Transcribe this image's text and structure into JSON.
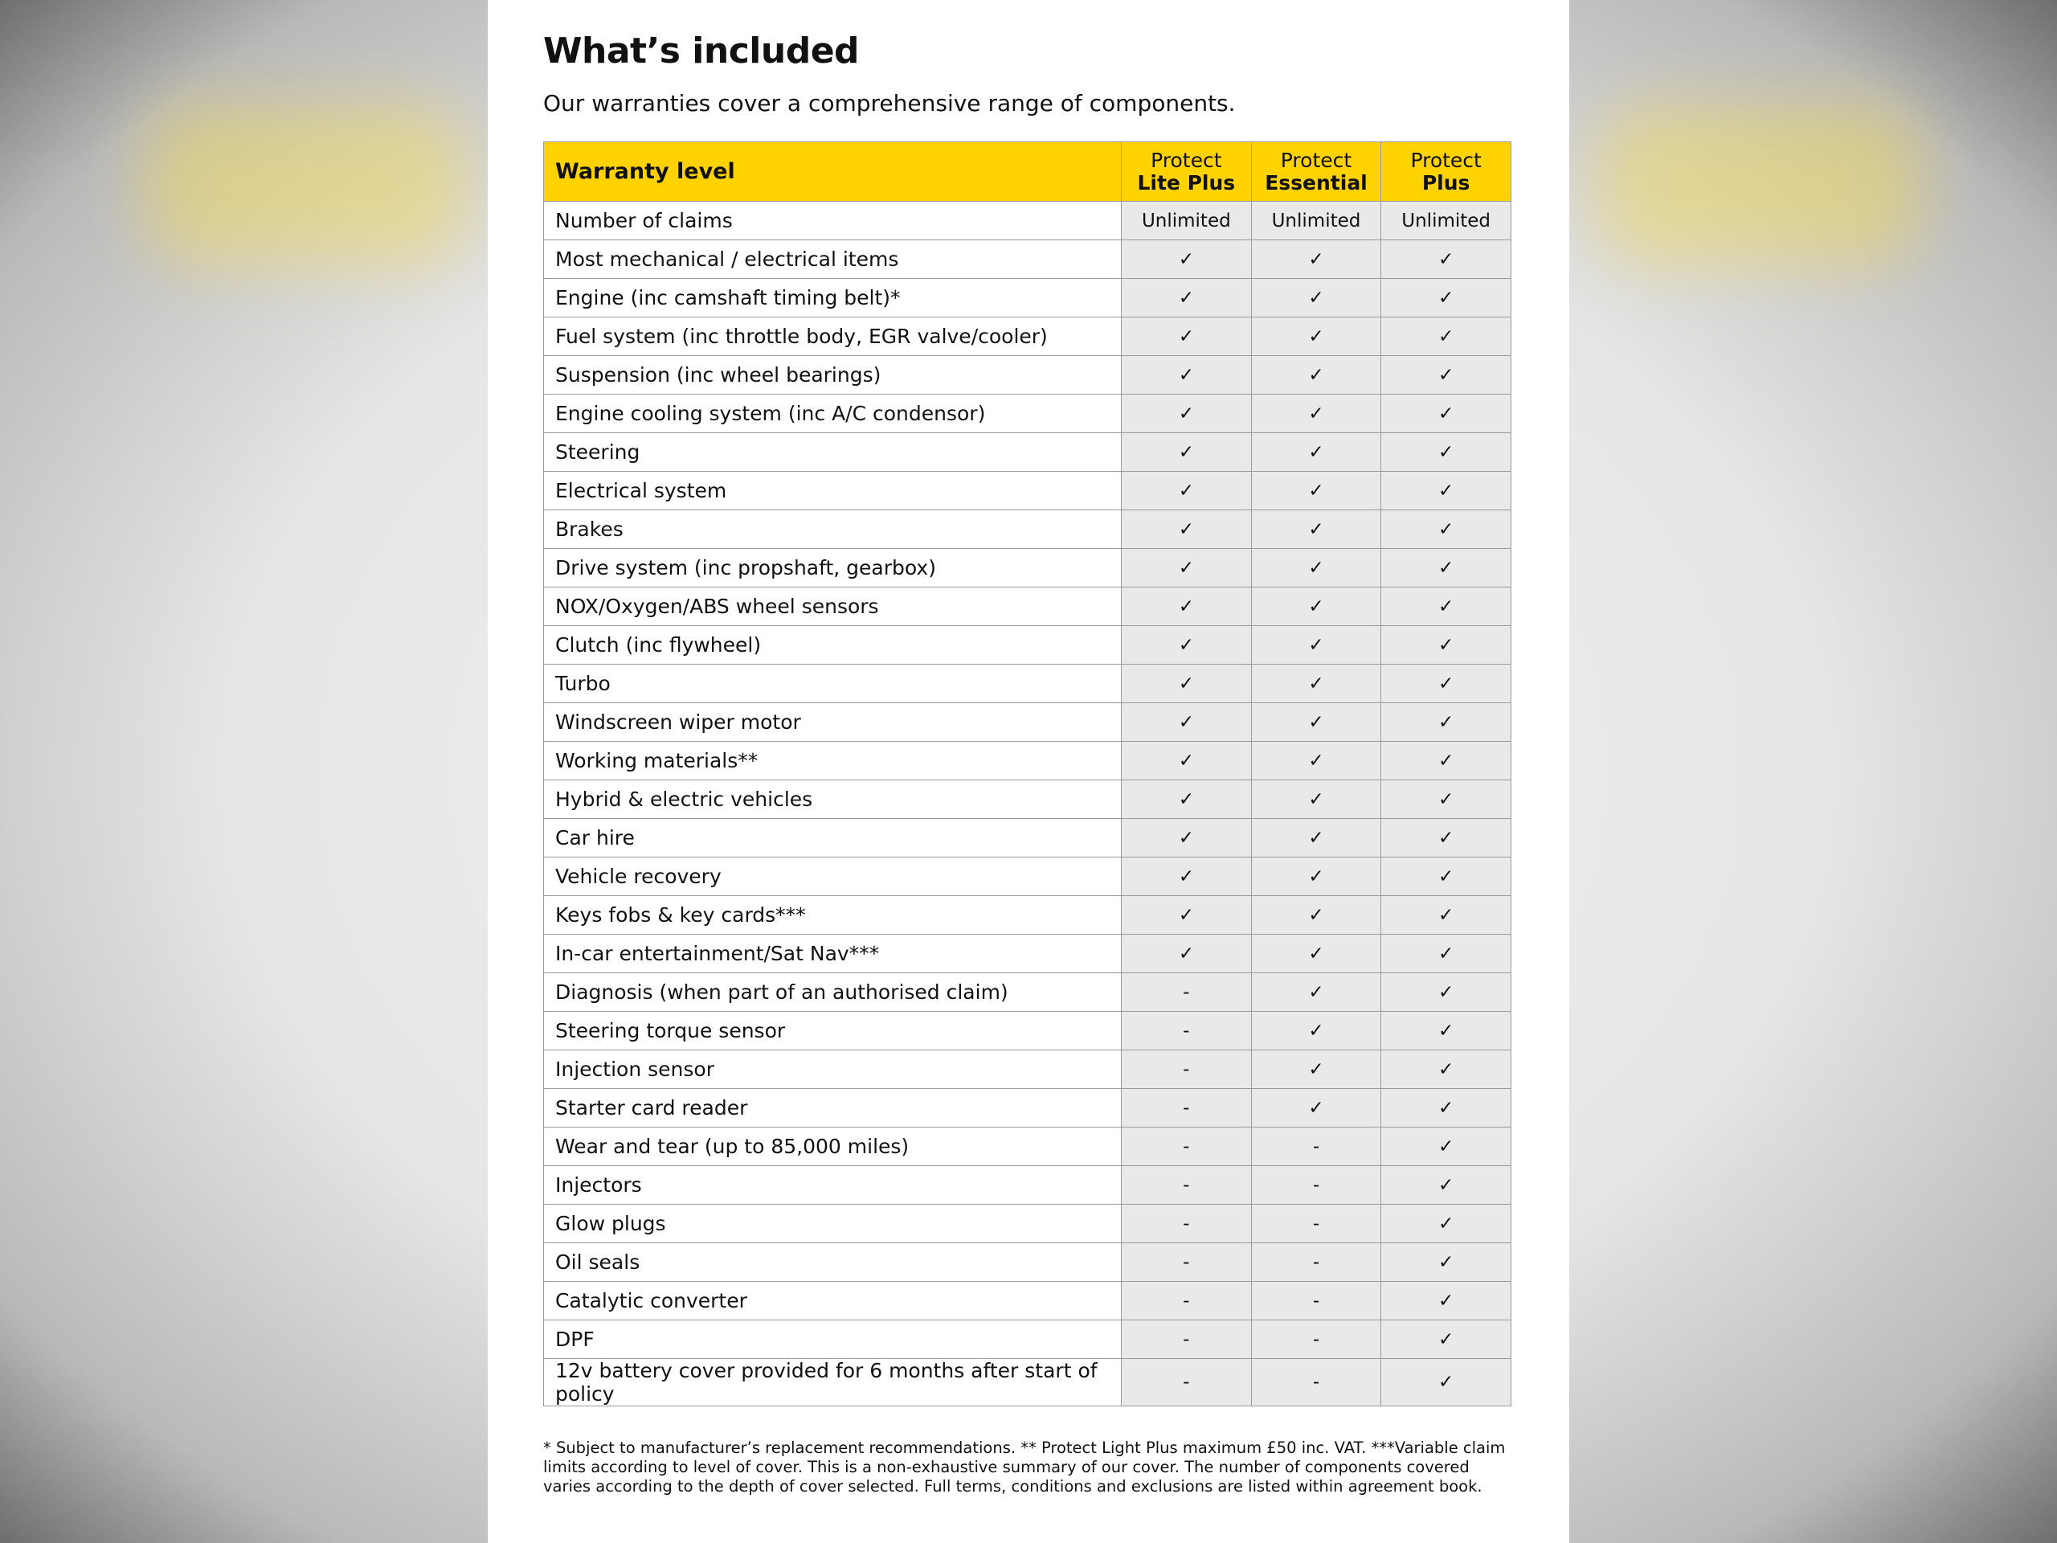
{
  "header": {
    "title": "What’s included",
    "subtitle": "Our warranties cover a comprehensive range of components."
  },
  "table": {
    "header": "Warranty level",
    "columns": [
      {
        "prefix": "Protect",
        "name": "Lite Plus"
      },
      {
        "prefix": "Protect",
        "name": "Essential"
      },
      {
        "prefix": "Protect",
        "name": "Plus"
      }
    ],
    "rows": [
      [
        "Number of claims",
        "Unlimited",
        "Unlimited",
        "Unlimited"
      ],
      [
        "Most mechanical / electrical items",
        "✓",
        "✓",
        "✓"
      ],
      [
        "Engine (inc camshaft timing belt)*",
        "✓",
        "✓",
        "✓"
      ],
      [
        "Fuel system (inc throttle body, EGR valve/cooler)",
        "✓",
        "✓",
        "✓"
      ],
      [
        "Suspension (inc wheel bearings)",
        "✓",
        "✓",
        "✓"
      ],
      [
        "Engine cooling system (inc A/C condensor)",
        "✓",
        "✓",
        "✓"
      ],
      [
        "Steering",
        "✓",
        "✓",
        "✓"
      ],
      [
        "Electrical system",
        "✓",
        "✓",
        "✓"
      ],
      [
        "Brakes",
        "✓",
        "✓",
        "✓"
      ],
      [
        "Drive system (inc propshaft, gearbox)",
        "✓",
        "✓",
        "✓"
      ],
      [
        "NOX/Oxygen/ABS wheel sensors",
        "✓",
        "✓",
        "✓"
      ],
      [
        "Clutch (inc flywheel)",
        "✓",
        "✓",
        "✓"
      ],
      [
        "Turbo",
        "✓",
        "✓",
        "✓"
      ],
      [
        "Windscreen wiper motor",
        "✓",
        "✓",
        "✓"
      ],
      [
        "Working materials**",
        "✓",
        "✓",
        "✓"
      ],
      [
        "Hybrid & electric vehicles",
        "✓",
        "✓",
        "✓"
      ],
      [
        "Car hire",
        "✓",
        "✓",
        "✓"
      ],
      [
        "Vehicle recovery",
        "✓",
        "✓",
        "✓"
      ],
      [
        "Keys fobs & key cards***",
        "✓",
        "✓",
        "✓"
      ],
      [
        "In-car entertainment/Sat Nav***",
        "✓",
        "✓",
        "✓"
      ],
      [
        "Diagnosis (when part of an authorised claim)",
        "-",
        "✓",
        "✓"
      ],
      [
        "Steering torque sensor",
        "-",
        "✓",
        "✓"
      ],
      [
        "Injection sensor",
        "-",
        "✓",
        "✓"
      ],
      [
        "Starter card reader",
        "-",
        "✓",
        "✓"
      ],
      [
        "Wear and tear (up to 85,000 miles)",
        "-",
        "-",
        "✓"
      ],
      [
        "Injectors",
        "-",
        "-",
        "✓"
      ],
      [
        "Glow plugs",
        "-",
        "-",
        "✓"
      ],
      [
        "Oil seals",
        "-",
        "-",
        "✓"
      ],
      [
        "Catalytic converter",
        "-",
        "-",
        "✓"
      ],
      [
        "DPF",
        "-",
        "-",
        "✓"
      ],
      [
        "12v battery cover provided for 6 months after start of policy",
        "-",
        "-",
        "✓"
      ]
    ]
  },
  "footnote": "* Subject to manufacturer’s replacement recommendations. ** Protect Light Plus maximum £50 inc. VAT. ***Variable claim limits according to level of cover. This is a non-exhaustive summary of our cover. The number of components covered varies according to the depth of cover selected. Full terms, conditions and exclusions are listed within agreement book."
}
